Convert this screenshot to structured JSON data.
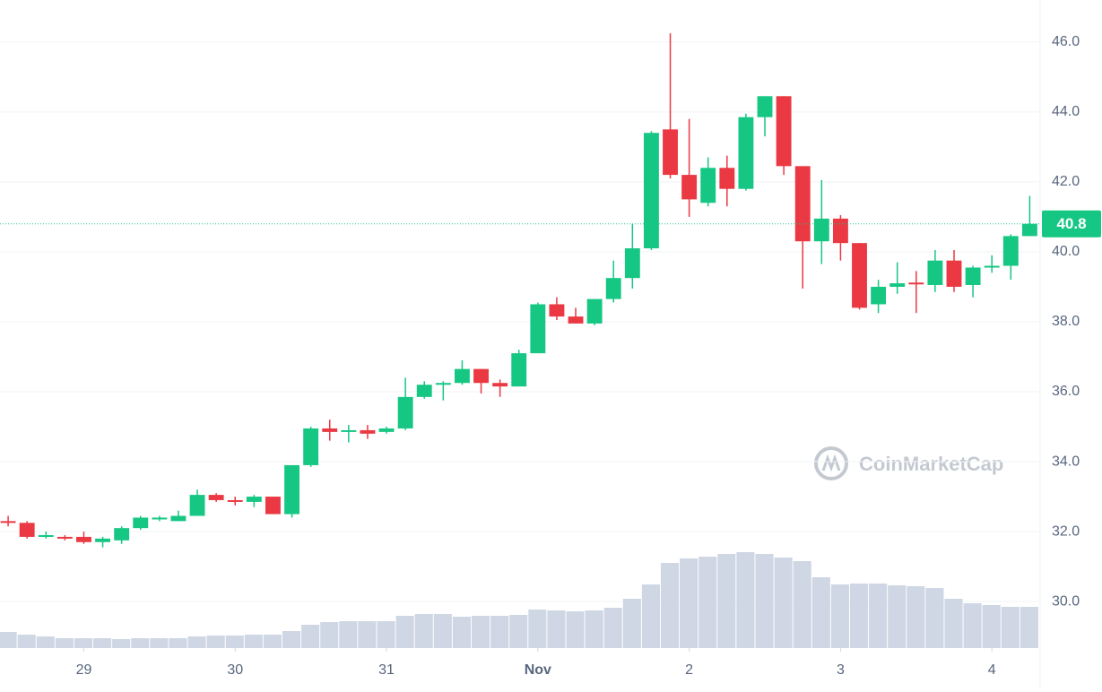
{
  "chart_data": {
    "type": "candlestick",
    "watermark": "CoinMarketCap",
    "xlim": [
      -0.43,
      54.55
    ],
    "xticks": [
      {
        "value": 4,
        "label": "29"
      },
      {
        "value": 12,
        "label": "30"
      },
      {
        "value": 20,
        "label": "31"
      },
      {
        "value": 28,
        "label": "Nov"
      },
      {
        "value": 36,
        "label": "2"
      },
      {
        "value": 44,
        "label": "3"
      },
      {
        "value": 52,
        "label": "4"
      }
    ],
    "ylim": [
      28.67,
      47.2
    ],
    "yticks": [
      {
        "value": 30,
        "label": "30.0"
      },
      {
        "value": 32,
        "label": "32.0"
      },
      {
        "value": 34,
        "label": "34.0"
      },
      {
        "value": 36,
        "label": "36.0"
      },
      {
        "value": 38,
        "label": "38.0"
      },
      {
        "value": 40,
        "label": "40.0"
      },
      {
        "value": 42,
        "label": "42.0"
      },
      {
        "value": 44,
        "label": "44.0"
      },
      {
        "value": 46,
        "label": "46.0"
      }
    ],
    "grid": true,
    "up_color": "#16c784",
    "down_color": "#ea3943",
    "volume_color": "#cfd6e4",
    "current_price": {
      "value": 40.8,
      "label": "40.8"
    },
    "open": [
      32.3,
      32.25,
      31.85,
      31.85,
      31.85,
      31.7,
      31.75,
      32.1,
      32.35,
      32.3,
      32.45,
      33.05,
      32.9,
      32.85,
      33.0,
      32.5,
      33.9,
      34.95,
      34.85,
      34.9,
      34.85,
      34.95,
      35.85,
      36.2,
      36.25,
      36.65,
      36.25,
      36.15,
      37.1,
      38.5,
      38.15,
      37.95,
      38.65,
      39.25,
      40.1,
      43.5,
      42.2,
      41.4,
      42.4,
      41.8,
      43.85,
      44.45,
      42.45,
      40.3,
      40.95,
      40.25,
      38.5,
      39.0,
      39.12,
      39.05,
      39.75,
      39.05,
      39.55,
      39.6,
      40.45
    ],
    "high": [
      32.45,
      32.3,
      32.0,
      31.9,
      32.0,
      31.85,
      32.15,
      32.45,
      32.45,
      32.6,
      33.2,
      33.1,
      33.0,
      33.05,
      33.0,
      33.9,
      35.0,
      35.2,
      35.05,
      35.05,
      35.0,
      36.4,
      36.3,
      36.3,
      36.9,
      36.65,
      36.35,
      37.2,
      38.55,
      38.7,
      38.4,
      38.65,
      39.75,
      40.8,
      43.45,
      46.25,
      43.8,
      42.7,
      42.75,
      43.95,
      44.45,
      44.45,
      42.45,
      42.05,
      41.05,
      40.25,
      39.2,
      39.7,
      39.45,
      40.05,
      40.05,
      39.6,
      39.9,
      40.5,
      41.6
    ],
    "low": [
      32.15,
      31.8,
      31.8,
      31.75,
      31.65,
      31.55,
      31.65,
      32.05,
      32.3,
      32.3,
      32.45,
      32.85,
      32.75,
      32.7,
      32.5,
      32.4,
      33.85,
      34.6,
      34.55,
      34.65,
      34.8,
      34.9,
      35.8,
      35.75,
      36.2,
      35.95,
      35.85,
      36.15,
      37.1,
      38.05,
      37.95,
      37.9,
      38.55,
      38.95,
      40.05,
      42.1,
      41.0,
      41.3,
      41.3,
      41.75,
      43.3,
      42.2,
      38.95,
      39.65,
      39.75,
      38.35,
      38.25,
      38.8,
      38.25,
      38.85,
      38.85,
      38.7,
      39.4,
      39.2,
      40.45
    ],
    "close": [
      32.25,
      31.85,
      31.9,
      31.8,
      31.7,
      31.8,
      32.1,
      32.4,
      32.4,
      32.45,
      33.05,
      32.9,
      32.85,
      33.0,
      32.5,
      33.9,
      34.95,
      34.85,
      34.9,
      34.8,
      34.95,
      35.85,
      36.2,
      36.25,
      36.65,
      36.25,
      36.15,
      37.1,
      38.5,
      38.15,
      37.95,
      38.65,
      39.25,
      40.1,
      43.4,
      42.2,
      41.5,
      42.4,
      41.8,
      43.85,
      44.45,
      42.45,
      40.3,
      40.95,
      40.25,
      38.4,
      39.0,
      39.1,
      39.08,
      39.75,
      39.0,
      39.55,
      39.6,
      40.45,
      40.8
    ],
    "volume": [
      18,
      15,
      13,
      11,
      11,
      11,
      10,
      11,
      11,
      11,
      13,
      14,
      14,
      15,
      15,
      19,
      26,
      29,
      30,
      30,
      30,
      36,
      38,
      38,
      35,
      36,
      36,
      37,
      43,
      42,
      41,
      42,
      45,
      55,
      71,
      95,
      100,
      102,
      105,
      107,
      105,
      101,
      97,
      79,
      71,
      72,
      72,
      70,
      69,
      67,
      55,
      50,
      48,
      46,
      46
    ]
  }
}
